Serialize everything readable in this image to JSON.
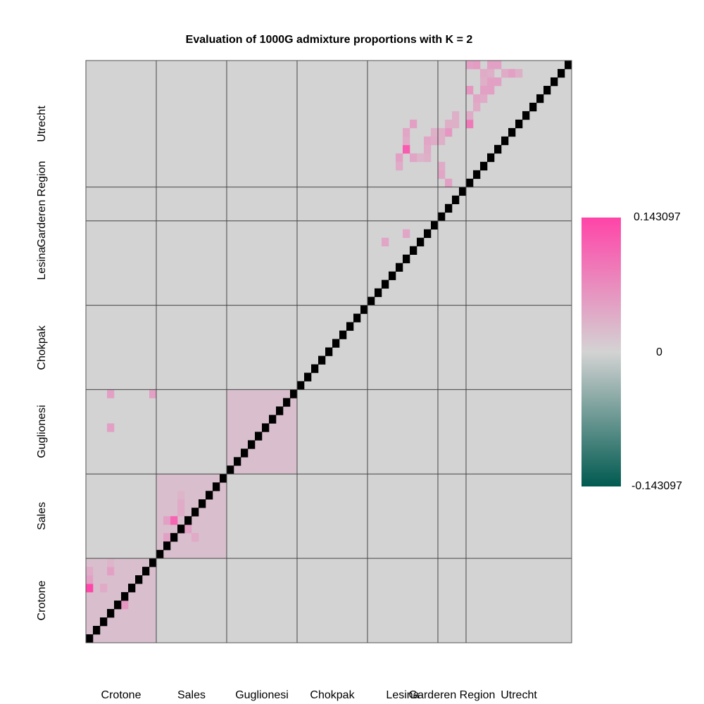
{
  "chart_data": {
    "type": "heatmap",
    "title": "Evaluation of 1000G admixture proportions with K = 2",
    "n": 69,
    "populations": [
      {
        "name": "Crotone",
        "size": 10
      },
      {
        "name": "Sales",
        "size": 10
      },
      {
        "name": "Guglionesi",
        "size": 10
      },
      {
        "name": "Chokpak",
        "size": 10
      },
      {
        "name": "Lesina",
        "size": 10
      },
      {
        "name": "Garderen Region",
        "size": 4
      },
      {
        "name": "Utrecht",
        "size": 15
      }
    ],
    "color_scale": {
      "min": -0.143097,
      "mid": 0,
      "max": 0.143097,
      "min_label": "-0.143097",
      "mid_label": "0",
      "max_label": "0.143097",
      "low_color": "#005a50",
      "mid_color": "#d3d3d3",
      "high_color": "#ff44a8"
    },
    "diagonal_color": "#000000",
    "within_block_value": 0.02,
    "cells": [
      [
        0,
        6,
        0.14
      ],
      [
        0,
        7,
        0.05
      ],
      [
        0,
        8,
        0.04
      ],
      [
        2,
        2,
        0.045
      ],
      [
        3,
        8,
        0.05
      ],
      [
        5,
        4,
        0.06
      ],
      [
        5,
        5,
        0.07
      ],
      [
        3,
        9,
        0.03
      ],
      [
        2,
        6,
        0.04
      ],
      [
        11,
        12,
        0.05
      ],
      [
        11,
        14,
        0.05
      ],
      [
        13,
        15,
        0.04
      ],
      [
        13,
        16,
        0.04
      ],
      [
        13,
        17,
        0.03
      ],
      [
        12,
        14,
        0.11
      ],
      [
        14,
        13,
        0.05
      ],
      [
        15,
        12,
        0.04
      ],
      [
        3,
        25,
        0.05
      ],
      [
        3,
        29,
        0.05
      ],
      [
        9,
        29,
        0.05
      ],
      [
        42,
        47,
        0.045
      ],
      [
        45,
        48,
        0.045
      ],
      [
        50,
        55,
        0.045
      ],
      [
        51,
        54,
        0.05
      ],
      [
        56,
        66,
        0.035
      ],
      [
        54,
        68,
        0.05
      ],
      [
        55,
        68,
        0.055
      ],
      [
        55,
        64,
        0.045
      ],
      [
        59,
        67,
        0.04
      ],
      [
        60,
        67,
        0.05
      ],
      [
        61,
        67,
        0.035
      ],
      [
        56,
        64,
        0.04
      ],
      [
        55,
        63,
        0.04
      ],
      [
        54,
        61,
        0.09
      ],
      [
        54,
        65,
        0.06
      ],
      [
        51,
        60,
        0.06
      ],
      [
        50,
        59,
        0.035
      ],
      [
        49,
        60,
        0.035
      ],
      [
        48,
        57,
        0.035
      ],
      [
        47,
        57,
        0.03
      ],
      [
        46,
        57,
        0.045
      ],
      [
        44,
        57,
        0.05
      ],
      [
        45,
        58,
        0.12
      ],
      [
        48,
        59,
        0.045
      ],
      [
        50,
        60,
        0.035
      ],
      [
        51,
        61,
        0.035
      ],
      [
        44,
        56,
        0.04
      ],
      [
        52,
        62,
        0.035
      ],
      [
        56,
        65,
        0.045
      ],
      [
        57,
        65,
        0.05
      ],
      [
        56,
        65,
        0.05
      ],
      [
        57,
        66,
        0.05
      ],
      [
        57,
        67,
        0.035
      ],
      [
        58,
        68,
        0.05
      ],
      [
        50,
        56,
        0.04
      ],
      [
        49,
        59,
        0.04
      ],
      [
        48,
        58,
        0.04
      ],
      [
        45,
        59,
        0.04
      ],
      [
        52,
        61,
        0.035
      ],
      [
        54,
        62,
        0.04
      ],
      [
        46,
        61,
        0.05
      ],
      [
        45,
        60,
        0.045
      ],
      [
        56,
        67,
        0.04
      ],
      [
        57,
        68,
        0.05
      ],
      [
        58,
        66,
        0.05
      ]
    ]
  }
}
